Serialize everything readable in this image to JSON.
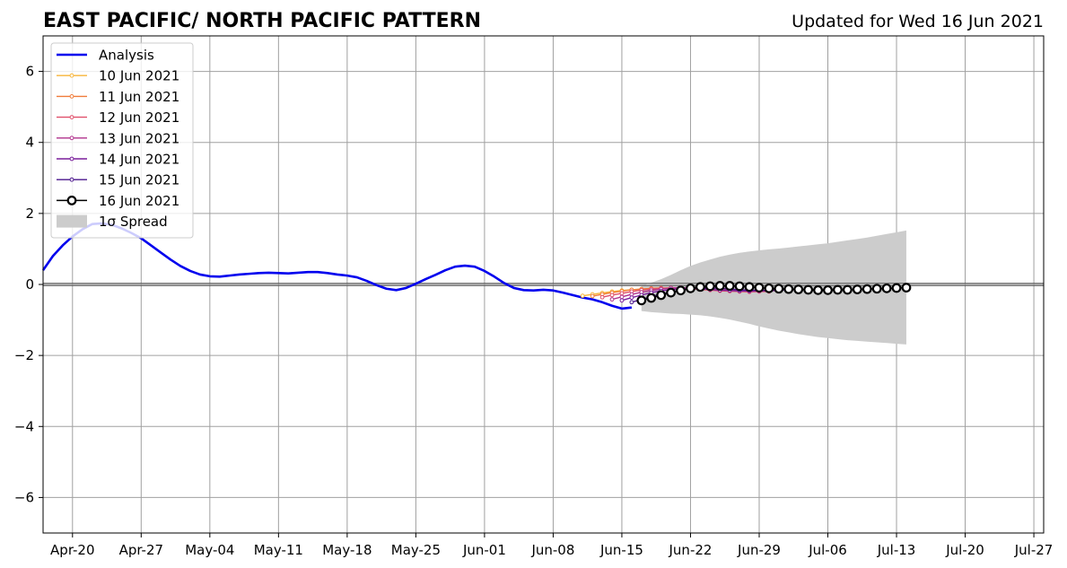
{
  "header": {
    "title": "EAST PACIFIC/ NORTH PACIFIC PATTERN",
    "updated": "Updated for Wed 16 Jun 2021"
  },
  "chart_data": {
    "type": "line",
    "title": "EAST PACIFIC/ NORTH PACIFIC PATTERN",
    "subtitle": "Updated for Wed 16 Jun 2021",
    "xlabel": "",
    "ylabel": "",
    "x_start": "2021-04-17",
    "xlim": [
      "2021-04-17",
      "2021-07-28"
    ],
    "ylim": [
      -7,
      7
    ],
    "x_ticks": [
      "Apr-20",
      "Apr-27",
      "May-04",
      "May-11",
      "May-18",
      "May-25",
      "Jun-01",
      "Jun-08",
      "Jun-15",
      "Jun-22",
      "Jun-29",
      "Jul-06",
      "Jul-13",
      "Jul-20",
      "Jul-27"
    ],
    "y_ticks": [
      {
        "value": 6,
        "label": "6"
      },
      {
        "value": 4,
        "label": "4"
      },
      {
        "value": 2,
        "label": "2"
      },
      {
        "value": 0,
        "label": "0"
      },
      {
        "value": -2,
        "label": "−2"
      },
      {
        "value": -4,
        "label": "−4"
      },
      {
        "value": -6,
        "label": "−6"
      }
    ],
    "grid": true,
    "legend_position": "top-left",
    "analysis": {
      "name": "Analysis",
      "color": "#0000ee",
      "x": [
        "2021-04-17",
        "2021-04-18",
        "2021-04-19",
        "2021-04-20",
        "2021-04-21",
        "2021-04-22",
        "2021-04-23",
        "2021-04-24",
        "2021-04-25",
        "2021-04-26",
        "2021-04-27",
        "2021-04-28",
        "2021-04-29",
        "2021-04-30",
        "2021-05-01",
        "2021-05-02",
        "2021-05-03",
        "2021-05-04",
        "2021-05-05",
        "2021-05-06",
        "2021-05-07",
        "2021-05-08",
        "2021-05-09",
        "2021-05-10",
        "2021-05-11",
        "2021-05-12",
        "2021-05-13",
        "2021-05-14",
        "2021-05-15",
        "2021-05-16",
        "2021-05-17",
        "2021-05-18",
        "2021-05-19",
        "2021-05-20",
        "2021-05-21",
        "2021-05-22",
        "2021-05-23",
        "2021-05-24",
        "2021-05-25",
        "2021-05-26",
        "2021-05-27",
        "2021-05-28",
        "2021-05-29",
        "2021-05-30",
        "2021-05-31",
        "2021-06-01",
        "2021-06-02",
        "2021-06-03",
        "2021-06-04",
        "2021-06-05",
        "2021-06-06",
        "2021-06-07",
        "2021-06-08",
        "2021-06-09",
        "2021-06-10",
        "2021-06-11",
        "2021-06-12",
        "2021-06-13",
        "2021-06-14",
        "2021-06-15",
        "2021-06-16"
      ],
      "values": [
        0.4,
        0.8,
        1.1,
        1.35,
        1.55,
        1.7,
        1.72,
        1.68,
        1.58,
        1.45,
        1.3,
        1.1,
        0.9,
        0.7,
        0.52,
        0.38,
        0.28,
        0.23,
        0.22,
        0.25,
        0.28,
        0.3,
        0.32,
        0.33,
        0.32,
        0.31,
        0.33,
        0.35,
        0.35,
        0.32,
        0.28,
        0.25,
        0.2,
        0.1,
        -0.02,
        -0.12,
        -0.16,
        -0.1,
        0.02,
        0.15,
        0.27,
        0.4,
        0.5,
        0.53,
        0.5,
        0.38,
        0.22,
        0.04,
        -0.1,
        -0.16,
        -0.17,
        -0.15,
        -0.17,
        -0.23,
        -0.3,
        -0.37,
        -0.42,
        -0.5,
        -0.6,
        -0.68,
        -0.65
      ]
    },
    "forecasts": [
      {
        "name": "10 Jun 2021",
        "color": "#f7b53a",
        "start": "2021-06-11",
        "values": [
          -0.32,
          -0.28,
          -0.24,
          -0.2,
          -0.17,
          -0.15,
          -0.13,
          -0.12,
          -0.11,
          -0.1,
          -0.11,
          -0.12,
          -0.13,
          -0.14,
          -0.15,
          -0.16,
          -0.17,
          -0.18
        ]
      },
      {
        "name": "11 Jun 2021",
        "color": "#f07c3a",
        "start": "2021-06-12",
        "values": [
          -0.33,
          -0.28,
          -0.23,
          -0.19,
          -0.15,
          -0.13,
          -0.11,
          -0.1,
          -0.1,
          -0.11,
          -0.12,
          -0.13,
          -0.14,
          -0.15,
          -0.16,
          -0.17,
          -0.18,
          -0.19
        ]
      },
      {
        "name": "12 Jun 2021",
        "color": "#e0506a",
        "start": "2021-06-13",
        "values": [
          -0.36,
          -0.3,
          -0.25,
          -0.2,
          -0.16,
          -0.13,
          -0.11,
          -0.1,
          -0.11,
          -0.12,
          -0.14,
          -0.16,
          -0.18,
          -0.19,
          -0.2,
          -0.21,
          -0.2,
          -0.2
        ]
      },
      {
        "name": "13 Jun 2021",
        "color": "#b0328c",
        "start": "2021-06-14",
        "values": [
          -0.42,
          -0.35,
          -0.28,
          -0.22,
          -0.17,
          -0.13,
          -0.1,
          -0.09,
          -0.1,
          -0.12,
          -0.14,
          -0.16,
          -0.17,
          -0.18,
          -0.19,
          -0.19,
          -0.18,
          -0.17
        ]
      },
      {
        "name": "14 Jun 2021",
        "color": "#7a1f9c",
        "start": "2021-06-15",
        "values": [
          -0.45,
          -0.37,
          -0.3,
          -0.23,
          -0.18,
          -0.14,
          -0.12,
          -0.11,
          -0.12,
          -0.14,
          -0.16,
          -0.17,
          -0.18,
          -0.18,
          -0.17,
          -0.16,
          -0.15,
          -0.15
        ]
      },
      {
        "name": "15 Jun 2021",
        "color": "#4a148c",
        "start": "2021-06-16",
        "values": [
          -0.5,
          -0.42,
          -0.34,
          -0.27,
          -0.21,
          -0.16,
          -0.12,
          -0.1,
          -0.1,
          -0.11,
          -0.13,
          -0.15,
          -0.16,
          -0.17,
          -0.17,
          -0.16,
          -0.15,
          -0.14
        ]
      }
    ],
    "current": {
      "name": "16 Jun 2021",
      "color": "#000000",
      "start": "2021-06-17",
      "values": [
        -0.45,
        -0.38,
        -0.3,
        -0.23,
        -0.17,
        -0.11,
        -0.07,
        -0.05,
        -0.04,
        -0.04,
        -0.05,
        -0.07,
        -0.09,
        -0.11,
        -0.12,
        -0.13,
        -0.14,
        -0.15,
        -0.16,
        -0.16,
        -0.15,
        -0.15,
        -0.14,
        -0.13,
        -0.12,
        -0.11,
        -0.1,
        -0.09
      ]
    },
    "spread": {
      "name": "1σ Spread",
      "color": "#cccccc",
      "start": "2021-06-17",
      "upper": [
        -0.05,
        0.05,
        0.15,
        0.27,
        0.4,
        0.52,
        0.62,
        0.7,
        0.78,
        0.84,
        0.89,
        0.93,
        0.96,
        0.99,
        1.01,
        1.04,
        1.07,
        1.1,
        1.13,
        1.16,
        1.2,
        1.24,
        1.28,
        1.32,
        1.37,
        1.42,
        1.47,
        1.52
      ],
      "lower": [
        -0.75,
        -0.78,
        -0.8,
        -0.82,
        -0.83,
        -0.85,
        -0.87,
        -0.9,
        -0.94,
        -0.99,
        -1.05,
        -1.11,
        -1.18,
        -1.24,
        -1.3,
        -1.35,
        -1.4,
        -1.44,
        -1.48,
        -1.51,
        -1.54,
        -1.57,
        -1.59,
        -1.61,
        -1.63,
        -1.65,
        -1.67,
        -1.69
      ]
    }
  }
}
